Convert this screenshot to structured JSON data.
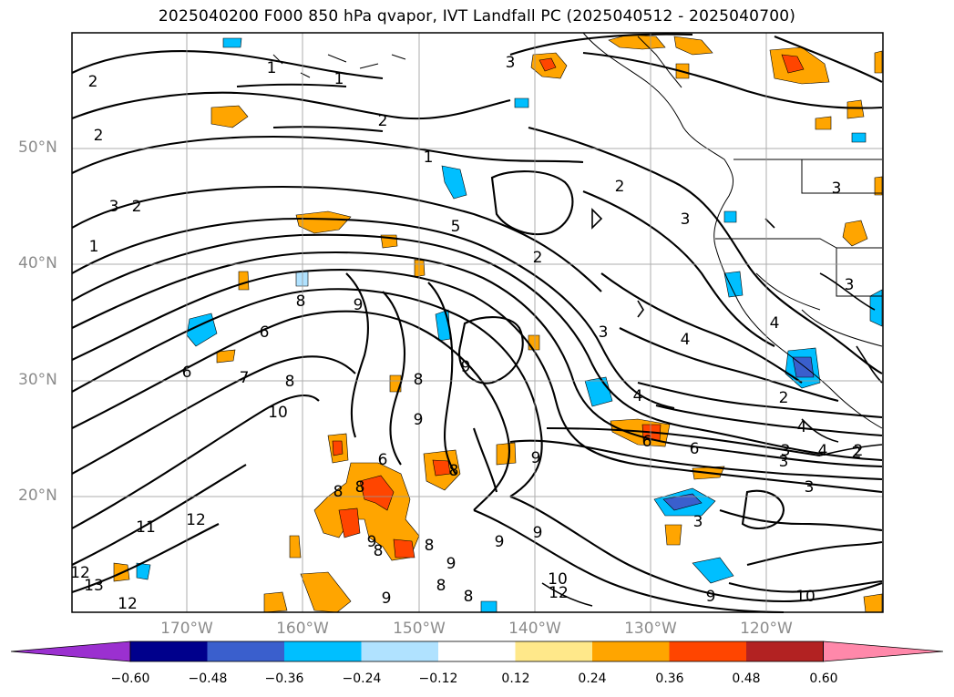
{
  "title": "2025040200 F000 850 hPa qvapor, IVT Landfall PC (2025040512 - 2025040700)",
  "lat_labels": [
    "50°N",
    "40°N",
    "30°N",
    "20°N"
  ],
  "lon_labels": [
    "170°W",
    "160°W",
    "150°W",
    "140°W",
    "130°W",
    "120°W"
  ],
  "colorbar": {
    "ticks": [
      "−0.60",
      "−0.48",
      "−0.36",
      "−0.24",
      "−0.12",
      "0.12",
      "0.24",
      "0.36",
      "0.48",
      "0.60"
    ],
    "colors": [
      "#9b30d0",
      "#00008c",
      "#3a5fcd",
      "#00bfff",
      "#b0e2ff",
      "#ffffff",
      "#ffe88a",
      "#ffa500",
      "#ff4500",
      "#b22222",
      "#ff88aa"
    ]
  },
  "contour_labels": [
    "1",
    "2",
    "3",
    "1",
    "2",
    "3",
    "2",
    "1",
    "2",
    "3",
    "2",
    "1",
    "2",
    "3",
    "5",
    "3",
    "3",
    "4",
    "4",
    "4",
    "2",
    "4",
    "4",
    "2",
    "3",
    "3",
    "6",
    "6",
    "6",
    "8",
    "9",
    "8",
    "9",
    "9",
    "6",
    "8",
    "7",
    "8",
    "9",
    "9",
    "8",
    "6",
    "10",
    "11",
    "12",
    "12",
    "13",
    "8",
    "8",
    "8",
    "8",
    "9",
    "9",
    "8",
    "9",
    "12",
    "10",
    "12",
    "3",
    "3",
    "2",
    "9",
    "9",
    "10",
    "5"
  ],
  "legend_note": ""
}
